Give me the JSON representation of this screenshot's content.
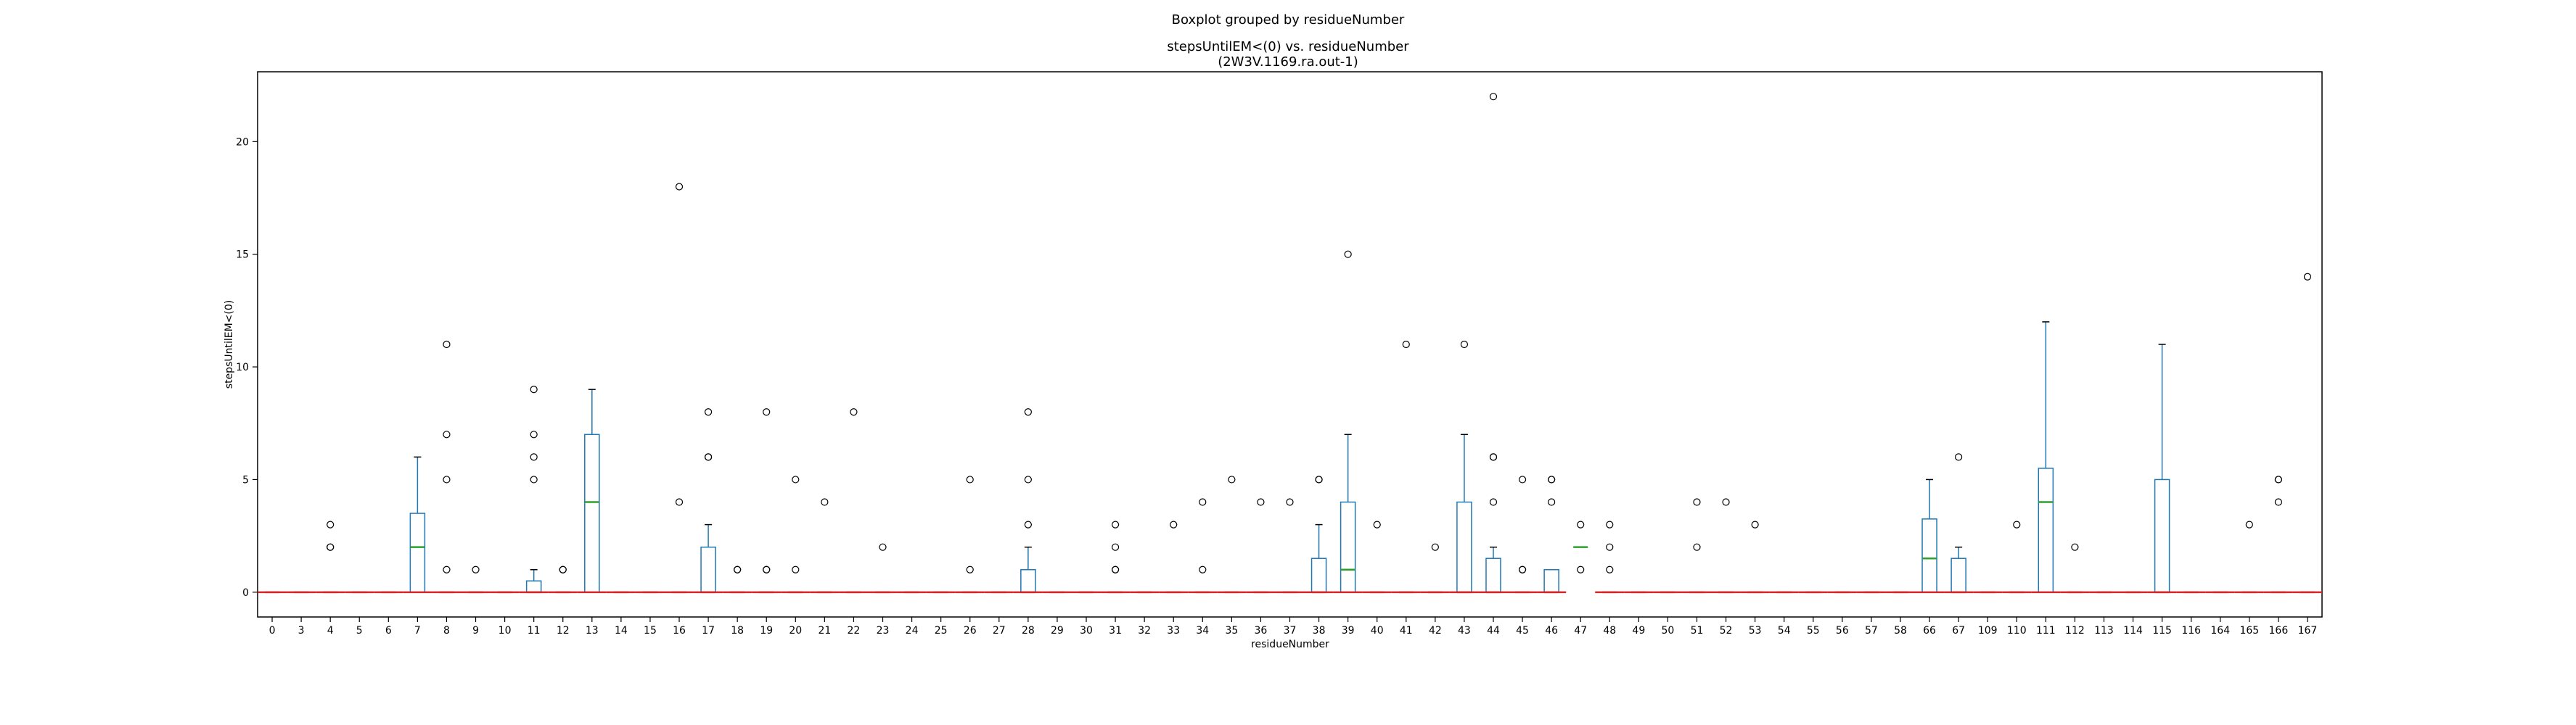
{
  "chart_data": {
    "type": "box",
    "suptitle": "Boxplot grouped by residueNumber",
    "title_line1": "stepsUntilEM<(0) vs. residueNumber",
    "title_line2": "(2W3V.1169.ra.out-1)",
    "xlabel": "residueNumber",
    "ylabel": "stepsUntilEM<(0)",
    "ylim": [
      -1.1,
      23.1
    ],
    "yticks": [
      0,
      5,
      10,
      15,
      20
    ],
    "grid": false,
    "colors": {
      "box": "#1f77b4",
      "median": "#2ca02c",
      "baseline": "#d62728",
      "outlier": "#000000"
    },
    "categories": [
      "0",
      "3",
      "4",
      "5",
      "6",
      "7",
      "8",
      "9",
      "10",
      "11",
      "12",
      "13",
      "14",
      "15",
      "16",
      "17",
      "18",
      "19",
      "20",
      "21",
      "22",
      "23",
      "24",
      "25",
      "26",
      "27",
      "28",
      "29",
      "30",
      "31",
      "32",
      "33",
      "34",
      "35",
      "36",
      "37",
      "38",
      "39",
      "40",
      "41",
      "42",
      "43",
      "44",
      "45",
      "46",
      "47",
      "48",
      "49",
      "50",
      "51",
      "52",
      "53",
      "54",
      "55",
      "56",
      "57",
      "58",
      "66",
      "67",
      "109",
      "110",
      "111",
      "112",
      "113",
      "114",
      "115",
      "116",
      "164",
      "165",
      "166",
      "167"
    ],
    "boxes": [
      {
        "cat": "0",
        "min": 0,
        "q1": 0,
        "median": 0,
        "q3": 0,
        "max": 0,
        "outliers": []
      },
      {
        "cat": "3",
        "min": 0,
        "q1": 0,
        "median": 0,
        "q3": 0,
        "max": 0,
        "outliers": []
      },
      {
        "cat": "4",
        "min": 0,
        "q1": 0,
        "median": 0,
        "q3": 0,
        "max": 0,
        "outliers": [
          2,
          2,
          3
        ]
      },
      {
        "cat": "5",
        "min": 0,
        "q1": 0,
        "median": 0,
        "q3": 0,
        "max": 0,
        "outliers": []
      },
      {
        "cat": "6",
        "min": 0,
        "q1": 0,
        "median": 0,
        "q3": 0,
        "max": 0,
        "outliers": []
      },
      {
        "cat": "7",
        "min": 0,
        "q1": 0,
        "median": 2,
        "q3": 3.5,
        "max": 6,
        "outliers": []
      },
      {
        "cat": "8",
        "min": 0,
        "q1": 0,
        "median": 0,
        "q3": 0,
        "max": 0,
        "outliers": [
          1,
          5,
          7,
          11
        ]
      },
      {
        "cat": "9",
        "min": 0,
        "q1": 0,
        "median": 0,
        "q3": 0,
        "max": 0,
        "outliers": [
          1
        ]
      },
      {
        "cat": "10",
        "min": 0,
        "q1": 0,
        "median": 0,
        "q3": 0,
        "max": 0,
        "outliers": []
      },
      {
        "cat": "11",
        "min": 0,
        "q1": 0,
        "median": 0,
        "q3": 0.5,
        "max": 1,
        "outliers": [
          5,
          6,
          7,
          9
        ]
      },
      {
        "cat": "12",
        "min": 0,
        "q1": 0,
        "median": 0,
        "q3": 0,
        "max": 0,
        "outliers": [
          1,
          1
        ]
      },
      {
        "cat": "13",
        "min": 0,
        "q1": 0,
        "median": 4,
        "q3": 7,
        "max": 9,
        "outliers": []
      },
      {
        "cat": "14",
        "min": 0,
        "q1": 0,
        "median": 0,
        "q3": 0,
        "max": 0,
        "outliers": []
      },
      {
        "cat": "15",
        "min": 0,
        "q1": 0,
        "median": 0,
        "q3": 0,
        "max": 0,
        "outliers": []
      },
      {
        "cat": "16",
        "min": 0,
        "q1": 0,
        "median": 0,
        "q3": 0,
        "max": 0,
        "outliers": [
          4,
          18
        ]
      },
      {
        "cat": "17",
        "min": 0,
        "q1": 0,
        "median": 0,
        "q3": 2,
        "max": 3,
        "outliers": [
          6,
          6,
          8
        ]
      },
      {
        "cat": "18",
        "min": 0,
        "q1": 0,
        "median": 0,
        "q3": 0,
        "max": 0,
        "outliers": [
          1,
          1
        ]
      },
      {
        "cat": "19",
        "min": 0,
        "q1": 0,
        "median": 0,
        "q3": 0,
        "max": 0,
        "outliers": [
          1,
          1,
          8
        ]
      },
      {
        "cat": "20",
        "min": 0,
        "q1": 0,
        "median": 0,
        "q3": 0,
        "max": 0,
        "outliers": [
          1,
          5
        ]
      },
      {
        "cat": "21",
        "min": 0,
        "q1": 0,
        "median": 0,
        "q3": 0,
        "max": 0,
        "outliers": [
          4
        ]
      },
      {
        "cat": "22",
        "min": 0,
        "q1": 0,
        "median": 0,
        "q3": 0,
        "max": 0,
        "outliers": [
          8
        ]
      },
      {
        "cat": "23",
        "min": 0,
        "q1": 0,
        "median": 0,
        "q3": 0,
        "max": 0,
        "outliers": [
          2
        ]
      },
      {
        "cat": "24",
        "min": 0,
        "q1": 0,
        "median": 0,
        "q3": 0,
        "max": 0,
        "outliers": []
      },
      {
        "cat": "25",
        "min": 0,
        "q1": 0,
        "median": 0,
        "q3": 0,
        "max": 0,
        "outliers": []
      },
      {
        "cat": "26",
        "min": 0,
        "q1": 0,
        "median": 0,
        "q3": 0,
        "max": 0,
        "outliers": [
          1,
          5
        ]
      },
      {
        "cat": "27",
        "min": 0,
        "q1": 0,
        "median": 0,
        "q3": 0,
        "max": 0,
        "outliers": []
      },
      {
        "cat": "28",
        "min": 0,
        "q1": 0,
        "median": 0,
        "q3": 1,
        "max": 2,
        "outliers": [
          3,
          5,
          8
        ]
      },
      {
        "cat": "29",
        "min": 0,
        "q1": 0,
        "median": 0,
        "q3": 0,
        "max": 0,
        "outliers": []
      },
      {
        "cat": "30",
        "min": 0,
        "q1": 0,
        "median": 0,
        "q3": 0,
        "max": 0,
        "outliers": []
      },
      {
        "cat": "31",
        "min": 0,
        "q1": 0,
        "median": 0,
        "q3": 0,
        "max": 0,
        "outliers": [
          1,
          1,
          2,
          3
        ]
      },
      {
        "cat": "32",
        "min": 0,
        "q1": 0,
        "median": 0,
        "q3": 0,
        "max": 0,
        "outliers": []
      },
      {
        "cat": "33",
        "min": 0,
        "q1": 0,
        "median": 0,
        "q3": 0,
        "max": 0,
        "outliers": [
          3
        ]
      },
      {
        "cat": "34",
        "min": 0,
        "q1": 0,
        "median": 0,
        "q3": 0,
        "max": 0,
        "outliers": [
          1,
          4
        ]
      },
      {
        "cat": "35",
        "min": 0,
        "q1": 0,
        "median": 0,
        "q3": 0,
        "max": 0,
        "outliers": [
          5
        ]
      },
      {
        "cat": "36",
        "min": 0,
        "q1": 0,
        "median": 0,
        "q3": 0,
        "max": 0,
        "outliers": [
          4
        ]
      },
      {
        "cat": "37",
        "min": 0,
        "q1": 0,
        "median": 0,
        "q3": 0,
        "max": 0,
        "outliers": [
          4
        ]
      },
      {
        "cat": "38",
        "min": 0,
        "q1": 0,
        "median": 0,
        "q3": 1.5,
        "max": 3,
        "outliers": [
          5,
          5
        ]
      },
      {
        "cat": "39",
        "min": 0,
        "q1": 0,
        "median": 1,
        "q3": 4,
        "max": 7,
        "outliers": [
          15
        ]
      },
      {
        "cat": "40",
        "min": 0,
        "q1": 0,
        "median": 0,
        "q3": 0,
        "max": 0,
        "outliers": [
          3
        ]
      },
      {
        "cat": "41",
        "min": 0,
        "q1": 0,
        "median": 0,
        "q3": 0,
        "max": 0,
        "outliers": [
          11
        ]
      },
      {
        "cat": "42",
        "min": 0,
        "q1": 0,
        "median": 0,
        "q3": 0,
        "max": 0,
        "outliers": [
          2
        ]
      },
      {
        "cat": "43",
        "min": 0,
        "q1": 0,
        "median": 0,
        "q3": 4,
        "max": 7,
        "outliers": [
          11
        ]
      },
      {
        "cat": "44",
        "min": 0,
        "q1": 0,
        "median": 0,
        "q3": 1.5,
        "max": 2,
        "outliers": [
          4,
          6,
          6,
          22
        ]
      },
      {
        "cat": "45",
        "min": 0,
        "q1": 0,
        "median": 0,
        "q3": 0,
        "max": 0,
        "outliers": [
          1,
          1,
          5
        ]
      },
      {
        "cat": "46",
        "min": 0,
        "q1": 0,
        "median": 0,
        "q3": 1,
        "max": 1,
        "outliers": [
          4,
          5,
          5
        ]
      },
      {
        "cat": "47",
        "min": 2,
        "q1": 2,
        "median": 2,
        "q3": 2,
        "max": 2,
        "outliers": [
          1,
          3
        ]
      },
      {
        "cat": "48",
        "min": 0,
        "q1": 0,
        "median": 0,
        "q3": 0,
        "max": 0,
        "outliers": [
          1,
          2,
          3
        ]
      },
      {
        "cat": "49",
        "min": 0,
        "q1": 0,
        "median": 0,
        "q3": 0,
        "max": 0,
        "outliers": []
      },
      {
        "cat": "50",
        "min": 0,
        "q1": 0,
        "median": 0,
        "q3": 0,
        "max": 0,
        "outliers": []
      },
      {
        "cat": "51",
        "min": 0,
        "q1": 0,
        "median": 0,
        "q3": 0,
        "max": 0,
        "outliers": [
          2,
          4
        ]
      },
      {
        "cat": "52",
        "min": 0,
        "q1": 0,
        "median": 0,
        "q3": 0,
        "max": 0,
        "outliers": [
          4
        ]
      },
      {
        "cat": "53",
        "min": 0,
        "q1": 0,
        "median": 0,
        "q3": 0,
        "max": 0,
        "outliers": [
          3
        ]
      },
      {
        "cat": "54",
        "min": 0,
        "q1": 0,
        "median": 0,
        "q3": 0,
        "max": 0,
        "outliers": []
      },
      {
        "cat": "55",
        "min": 0,
        "q1": 0,
        "median": 0,
        "q3": 0,
        "max": 0,
        "outliers": []
      },
      {
        "cat": "56",
        "min": 0,
        "q1": 0,
        "median": 0,
        "q3": 0,
        "max": 0,
        "outliers": []
      },
      {
        "cat": "57",
        "min": 0,
        "q1": 0,
        "median": 0,
        "q3": 0,
        "max": 0,
        "outliers": []
      },
      {
        "cat": "58",
        "min": 0,
        "q1": 0,
        "median": 0,
        "q3": 0,
        "max": 0,
        "outliers": []
      },
      {
        "cat": "66",
        "min": 0,
        "q1": 0,
        "median": 1.5,
        "q3": 3.25,
        "max": 5,
        "outliers": []
      },
      {
        "cat": "67",
        "min": 0,
        "q1": 0,
        "median": 0,
        "q3": 1.5,
        "max": 2,
        "outliers": [
          6
        ]
      },
      {
        "cat": "109",
        "min": 0,
        "q1": 0,
        "median": 0,
        "q3": 0,
        "max": 0,
        "outliers": []
      },
      {
        "cat": "110",
        "min": 0,
        "q1": 0,
        "median": 0,
        "q3": 0,
        "max": 0,
        "outliers": [
          3
        ]
      },
      {
        "cat": "111",
        "min": 0,
        "q1": 0,
        "median": 4,
        "q3": 5.5,
        "max": 12,
        "outliers": []
      },
      {
        "cat": "112",
        "min": 0,
        "q1": 0,
        "median": 0,
        "q3": 0,
        "max": 0,
        "outliers": [
          2
        ]
      },
      {
        "cat": "113",
        "min": 0,
        "q1": 0,
        "median": 0,
        "q3": 0,
        "max": 0,
        "outliers": []
      },
      {
        "cat": "114",
        "min": 0,
        "q1": 0,
        "median": 0,
        "q3": 0,
        "max": 0,
        "outliers": []
      },
      {
        "cat": "115",
        "min": 0,
        "q1": 0,
        "median": 0,
        "q3": 5,
        "max": 11,
        "outliers": []
      },
      {
        "cat": "116",
        "min": 0,
        "q1": 0,
        "median": 0,
        "q3": 0,
        "max": 0,
        "outliers": []
      },
      {
        "cat": "164",
        "min": 0,
        "q1": 0,
        "median": 0,
        "q3": 0,
        "max": 0,
        "outliers": []
      },
      {
        "cat": "165",
        "min": 0,
        "q1": 0,
        "median": 0,
        "q3": 0,
        "max": 0,
        "outliers": [
          3
        ]
      },
      {
        "cat": "166",
        "min": 0,
        "q1": 0,
        "median": 0,
        "q3": 0,
        "max": 0,
        "outliers": [
          4,
          5,
          5
        ]
      },
      {
        "cat": "167",
        "min": 0,
        "q1": 0,
        "median": 0,
        "q3": 0,
        "max": 0,
        "outliers": [
          14
        ]
      }
    ]
  }
}
